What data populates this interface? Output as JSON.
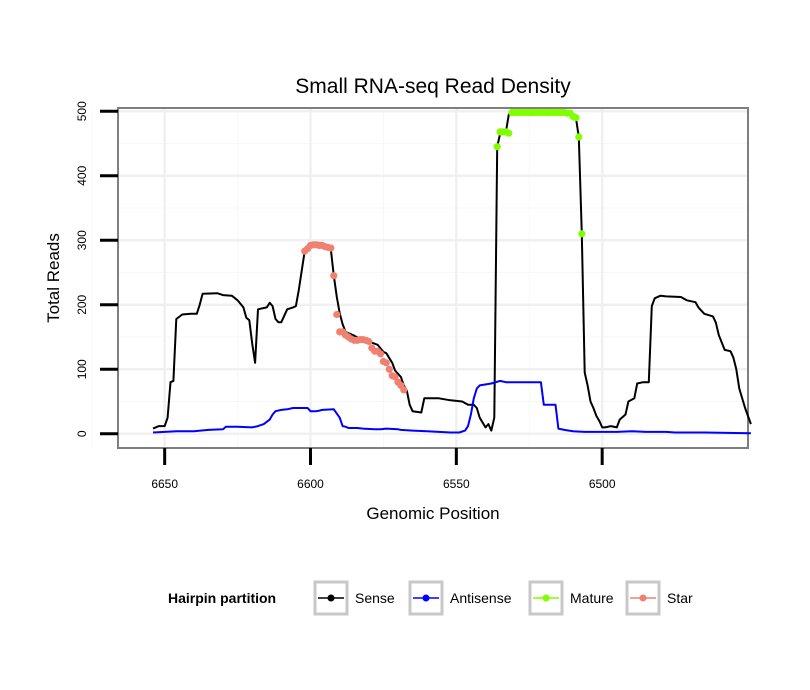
{
  "chart_data": {
    "type": "line",
    "title": "Small RNA-seq Read Density",
    "xlabel": "Genomic Position",
    "ylabel": "Total Reads",
    "xlim": [
      6666,
      6450
    ],
    "ylim": [
      -22,
      505
    ],
    "x_reversed": true,
    "x_ticks": [
      6650,
      6600,
      6550,
      6500
    ],
    "y_ticks": [
      0,
      100,
      200,
      300,
      400,
      500
    ],
    "grid": true,
    "legend": {
      "title": "Hairpin partition",
      "position": "bottom",
      "entries": [
        {
          "name": "Sense",
          "color": "#000000"
        },
        {
          "name": "Antisense",
          "color": "#0000ff"
        },
        {
          "name": "Mature",
          "color": "#7fff00"
        },
        {
          "name": "Star",
          "color": "#f08070"
        }
      ]
    },
    "series": [
      {
        "name": "Sense",
        "color": "#000000",
        "style": "line",
        "points": [
          [
            6654,
            8
          ],
          [
            6652,
            12
          ],
          [
            6650,
            12
          ],
          [
            6649,
            25
          ],
          [
            6648,
            80
          ],
          [
            6647,
            82
          ],
          [
            6646,
            178
          ],
          [
            6644,
            185
          ],
          [
            6641,
            186
          ],
          [
            6639,
            186
          ],
          [
            6638,
            200
          ],
          [
            6637,
            217
          ],
          [
            6632,
            218
          ],
          [
            6630,
            215
          ],
          [
            6627,
            214
          ],
          [
            6625,
            207
          ],
          [
            6623,
            196
          ],
          [
            6622,
            180
          ],
          [
            6621,
            176
          ],
          [
            6620,
            140
          ],
          [
            6619,
            110
          ],
          [
            6618,
            193
          ],
          [
            6616,
            195
          ],
          [
            6615,
            196
          ],
          [
            6614,
            203
          ],
          [
            6613,
            198
          ],
          [
            6612,
            178
          ],
          [
            6611,
            173
          ],
          [
            6610,
            173
          ],
          [
            6608,
            193
          ],
          [
            6606,
            196
          ],
          [
            6605,
            198
          ],
          [
            6604,
            223
          ],
          [
            6602,
            283
          ],
          [
            6600,
            292
          ],
          [
            6598,
            293
          ],
          [
            6597,
            292
          ],
          [
            6595,
            290
          ],
          [
            6593,
            285
          ],
          [
            6592,
            245
          ],
          [
            6591,
            212
          ],
          [
            6590,
            187
          ],
          [
            6589,
            170
          ],
          [
            6588,
            158
          ],
          [
            6585,
            152
          ],
          [
            6582,
            145
          ],
          [
            6580,
            143
          ],
          [
            6577,
            138
          ],
          [
            6575,
            127
          ],
          [
            6574,
            125
          ],
          [
            6572,
            110
          ],
          [
            6571,
            98
          ],
          [
            6569,
            88
          ],
          [
            6568,
            75
          ],
          [
            6567,
            67
          ],
          [
            6566,
            45
          ],
          [
            6565,
            35
          ],
          [
            6562,
            33
          ],
          [
            6561,
            55
          ],
          [
            6556,
            55
          ],
          [
            6552,
            52
          ],
          [
            6548,
            50
          ],
          [
            6546,
            45
          ],
          [
            6544,
            45
          ],
          [
            6543,
            40
          ],
          [
            6542,
            25
          ],
          [
            6540,
            10
          ],
          [
            6539,
            15
          ],
          [
            6538,
            5
          ],
          [
            6537,
            25
          ],
          [
            6536,
            445
          ],
          [
            6535,
            465
          ],
          [
            6533,
            468
          ],
          [
            6532,
            495
          ],
          [
            6530,
            498
          ],
          [
            6520,
            498
          ],
          [
            6511,
            497
          ],
          [
            6510,
            492
          ],
          [
            6509,
            490
          ],
          [
            6508,
            460
          ],
          [
            6507,
            310
          ],
          [
            6506,
            95
          ],
          [
            6505,
            75
          ],
          [
            6504,
            50
          ],
          [
            6503,
            40
          ],
          [
            6502,
            28
          ],
          [
            6501,
            20
          ],
          [
            6500,
            10
          ],
          [
            6499,
            10
          ],
          [
            6497,
            12
          ],
          [
            6495,
            10
          ],
          [
            6494,
            22
          ],
          [
            6492,
            30
          ],
          [
            6491,
            50
          ],
          [
            6489,
            55
          ],
          [
            6488,
            78
          ],
          [
            6486,
            80
          ],
          [
            6484,
            80
          ],
          [
            6483,
            198
          ],
          [
            6482,
            210
          ],
          [
            6480,
            214
          ],
          [
            6478,
            213
          ],
          [
            6473,
            212
          ],
          [
            6471,
            207
          ],
          [
            6468,
            204
          ],
          [
            6467,
            196
          ],
          [
            6465,
            186
          ],
          [
            6462,
            182
          ],
          [
            6461,
            172
          ],
          [
            6460,
            153
          ],
          [
            6458,
            130
          ],
          [
            6456,
            128
          ],
          [
            6455,
            118
          ],
          [
            6454,
            100
          ],
          [
            6453,
            70
          ],
          [
            6451,
            40
          ],
          [
            6449,
            15
          ]
        ]
      },
      {
        "name": "Antisense",
        "color": "#0000ff",
        "style": "line",
        "points": [
          [
            6654,
            2
          ],
          [
            6650,
            3
          ],
          [
            6646,
            4
          ],
          [
            6640,
            4
          ],
          [
            6635,
            6
          ],
          [
            6630,
            7
          ],
          [
            6629,
            11
          ],
          [
            6625,
            11
          ],
          [
            6620,
            10
          ],
          [
            6618,
            12
          ],
          [
            6616,
            15
          ],
          [
            6614,
            22
          ],
          [
            6613,
            30
          ],
          [
            6612,
            35
          ],
          [
            6610,
            37
          ],
          [
            6608,
            38
          ],
          [
            6606,
            40
          ],
          [
            6601,
            40
          ],
          [
            6600,
            35
          ],
          [
            6598,
            35
          ],
          [
            6597,
            36
          ],
          [
            6596,
            37
          ],
          [
            6592,
            38
          ],
          [
            6590,
            25
          ],
          [
            6589,
            12
          ],
          [
            6588,
            11
          ],
          [
            6587,
            9
          ],
          [
            6584,
            9
          ],
          [
            6582,
            8
          ],
          [
            6578,
            7
          ],
          [
            6576,
            7
          ],
          [
            6574,
            8
          ],
          [
            6570,
            7
          ],
          [
            6569,
            6
          ],
          [
            6565,
            5
          ],
          [
            6560,
            4
          ],
          [
            6556,
            3
          ],
          [
            6552,
            2
          ],
          [
            6549,
            2
          ],
          [
            6547,
            5
          ],
          [
            6546,
            12
          ],
          [
            6545,
            30
          ],
          [
            6544,
            55
          ],
          [
            6543,
            70
          ],
          [
            6542,
            75
          ],
          [
            6538,
            78
          ],
          [
            6535,
            82
          ],
          [
            6533,
            80
          ],
          [
            6528,
            80
          ],
          [
            6521,
            80
          ],
          [
            6520,
            45
          ],
          [
            6516,
            45
          ],
          [
            6515,
            8
          ],
          [
            6513,
            6
          ],
          [
            6510,
            4
          ],
          [
            6506,
            3
          ],
          [
            6500,
            3
          ],
          [
            6495,
            3
          ],
          [
            6490,
            4
          ],
          [
            6485,
            3
          ],
          [
            6478,
            3
          ],
          [
            6475,
            2
          ],
          [
            6470,
            2
          ],
          [
            6465,
            2
          ],
          [
            6449,
            1
          ]
        ]
      },
      {
        "name": "Mature",
        "color": "#7fff00",
        "style": "points",
        "points": [
          [
            6536,
            445
          ],
          [
            6535,
            468
          ],
          [
            6534,
            468
          ],
          [
            6533,
            468
          ],
          [
            6532,
            466
          ],
          [
            6531,
            498
          ],
          [
            6530,
            498
          ],
          [
            6529,
            498
          ],
          [
            6528,
            498
          ],
          [
            6527,
            498
          ],
          [
            6526,
            498
          ],
          [
            6525,
            498
          ],
          [
            6524,
            498
          ],
          [
            6523,
            498
          ],
          [
            6522,
            498
          ],
          [
            6521,
            498
          ],
          [
            6520,
            498
          ],
          [
            6519,
            498
          ],
          [
            6518,
            498
          ],
          [
            6517,
            498
          ],
          [
            6516,
            498
          ],
          [
            6515,
            498
          ],
          [
            6514,
            498
          ],
          [
            6513,
            498
          ],
          [
            6512,
            497
          ],
          [
            6511,
            497
          ],
          [
            6510,
            492
          ],
          [
            6509,
            490
          ],
          [
            6508,
            460
          ],
          [
            6507,
            310
          ]
        ]
      },
      {
        "name": "Star",
        "color": "#f08070",
        "style": "points",
        "points": [
          [
            6602,
            283
          ],
          [
            6601,
            287
          ],
          [
            6600,
            292
          ],
          [
            6599,
            293
          ],
          [
            6598,
            293
          ],
          [
            6597,
            292
          ],
          [
            6596,
            292
          ],
          [
            6595,
            290
          ],
          [
            6594,
            289
          ],
          [
            6593,
            288
          ],
          [
            6592,
            245
          ],
          [
            6591,
            185
          ],
          [
            6590,
            158
          ],
          [
            6589,
            158
          ],
          [
            6588,
            153
          ],
          [
            6587,
            150
          ],
          [
            6586,
            147
          ],
          [
            6585,
            145
          ],
          [
            6584,
            145
          ],
          [
            6583,
            146
          ],
          [
            6582,
            146
          ],
          [
            6581,
            145
          ],
          [
            6580,
            143
          ],
          [
            6579,
            133
          ],
          [
            6578,
            128
          ],
          [
            6577,
            128
          ],
          [
            6576,
            124
          ],
          [
            6575,
            112
          ],
          [
            6574,
            110
          ],
          [
            6573,
            100
          ],
          [
            6572,
            90
          ],
          [
            6571,
            88
          ],
          [
            6570,
            80
          ],
          [
            6569,
            75
          ],
          [
            6568,
            68
          ]
        ]
      }
    ]
  }
}
